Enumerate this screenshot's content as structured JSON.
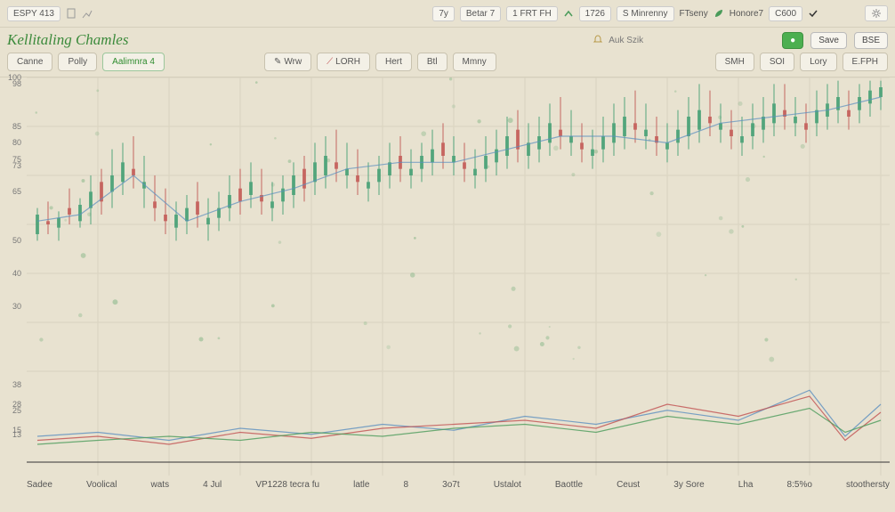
{
  "colors": {
    "bg": "#e8e2d0",
    "grid": "#d9d3c0",
    "axis_text": "#777777",
    "title": "#3b8a3b",
    "candle_up": "#3a9b6e",
    "candle_dn": "#c0504d",
    "line1": "#5a8fbf",
    "line2": "#c05050",
    "line3": "#4a9b5a",
    "baseline": "#333333"
  },
  "topbar": {
    "left_tag": "ESPY 413",
    "items": [
      "7y",
      "Betar 7",
      "1 FRT FH",
      "1726",
      "S Minrenny",
      "FTseny",
      "Honore7",
      "C600"
    ],
    "right_icon": "gear"
  },
  "titlebar": {
    "title": "Kellitaling Chamles",
    "side_label": "Auk Szik",
    "buttons": [
      "Save",
      "BSE"
    ],
    "green_btn": "●"
  },
  "toolbar": {
    "left": [
      {
        "label": "Canne",
        "active": false
      },
      {
        "label": "Polly",
        "active": false
      },
      {
        "label": "Aalimnra 4",
        "active": true
      }
    ],
    "mid": [
      {
        "label": "Wrw"
      },
      {
        "label": "LORH"
      },
      {
        "label": "Hert"
      },
      {
        "label": "Btl"
      },
      {
        "label": "Mmny"
      }
    ],
    "right": [
      {
        "label": "SMH"
      },
      {
        "label": "SOI"
      },
      {
        "label": "Lory"
      },
      {
        "label": "E.FPH"
      }
    ]
  },
  "main_chart": {
    "type": "candlestick",
    "ylim": [
      10,
      100
    ],
    "yticks": [
      100,
      98,
      85,
      80,
      75,
      73,
      65,
      50,
      40,
      30
    ],
    "xlim": [
      0,
      970
    ],
    "grid_x": [
      80,
      160,
      240,
      320,
      400,
      480,
      560,
      640,
      720,
      800,
      880,
      960
    ],
    "candles": [
      [
        12,
        52,
        60,
        50,
        58,
        "up"
      ],
      [
        24,
        55,
        62,
        52,
        56,
        "dn"
      ],
      [
        36,
        54,
        59,
        50,
        57,
        "up"
      ],
      [
        48,
        58,
        66,
        55,
        60,
        "dn"
      ],
      [
        60,
        56,
        63,
        54,
        61,
        "up"
      ],
      [
        72,
        60,
        70,
        55,
        65,
        "up"
      ],
      [
        84,
        62,
        72,
        58,
        68,
        "dn"
      ],
      [
        96,
        65,
        78,
        60,
        70,
        "up"
      ],
      [
        108,
        68,
        80,
        64,
        74,
        "up"
      ],
      [
        120,
        70,
        82,
        66,
        72,
        "dn"
      ],
      [
        132,
        66,
        76,
        60,
        68,
        "up"
      ],
      [
        144,
        62,
        70,
        56,
        60,
        "dn"
      ],
      [
        156,
        58,
        66,
        52,
        56,
        "dn"
      ],
      [
        168,
        54,
        62,
        50,
        58,
        "up"
      ],
      [
        180,
        56,
        64,
        52,
        60,
        "up"
      ],
      [
        192,
        58,
        68,
        54,
        62,
        "dn"
      ],
      [
        204,
        55,
        63,
        50,
        57,
        "up"
      ],
      [
        216,
        57,
        65,
        53,
        60,
        "up"
      ],
      [
        228,
        60,
        70,
        56,
        64,
        "up"
      ],
      [
        240,
        62,
        72,
        58,
        66,
        "dn"
      ],
      [
        252,
        64,
        74,
        60,
        68,
        "up"
      ],
      [
        264,
        62,
        72,
        58,
        64,
        "dn"
      ],
      [
        276,
        60,
        68,
        56,
        62,
        "up"
      ],
      [
        288,
        62,
        70,
        58,
        66,
        "up"
      ],
      [
        300,
        64,
        74,
        60,
        70,
        "up"
      ],
      [
        312,
        66,
        76,
        62,
        72,
        "dn"
      ],
      [
        324,
        68,
        80,
        64,
        74,
        "up"
      ],
      [
        336,
        70,
        82,
        66,
        76,
        "up"
      ],
      [
        348,
        72,
        84,
        68,
        74,
        "dn"
      ],
      [
        360,
        70,
        80,
        66,
        72,
        "up"
      ],
      [
        372,
        68,
        78,
        64,
        70,
        "dn"
      ],
      [
        384,
        66,
        74,
        62,
        68,
        "up"
      ],
      [
        396,
        68,
        76,
        64,
        72,
        "up"
      ],
      [
        408,
        70,
        80,
        66,
        74,
        "up"
      ],
      [
        420,
        72,
        82,
        68,
        76,
        "dn"
      ],
      [
        432,
        70,
        78,
        66,
        72,
        "up"
      ],
      [
        444,
        72,
        80,
        68,
        76,
        "up"
      ],
      [
        456,
        74,
        84,
        70,
        78,
        "up"
      ],
      [
        468,
        76,
        86,
        72,
        80,
        "dn"
      ],
      [
        480,
        74,
        82,
        70,
        76,
        "up"
      ],
      [
        492,
        72,
        80,
        68,
        74,
        "dn"
      ],
      [
        504,
        70,
        78,
        66,
        72,
        "up"
      ],
      [
        516,
        72,
        82,
        68,
        76,
        "up"
      ],
      [
        528,
        74,
        84,
        70,
        78,
        "up"
      ],
      [
        540,
        76,
        88,
        72,
        82,
        "up"
      ],
      [
        552,
        78,
        90,
        74,
        84,
        "dn"
      ],
      [
        564,
        76,
        86,
        72,
        80,
        "up"
      ],
      [
        576,
        78,
        88,
        74,
        82,
        "up"
      ],
      [
        588,
        80,
        92,
        76,
        86,
        "up"
      ],
      [
        600,
        82,
        94,
        78,
        84,
        "dn"
      ],
      [
        612,
        80,
        90,
        76,
        82,
        "up"
      ],
      [
        624,
        78,
        86,
        74,
        80,
        "dn"
      ],
      [
        636,
        76,
        84,
        72,
        78,
        "up"
      ],
      [
        648,
        78,
        88,
        74,
        82,
        "up"
      ],
      [
        660,
        80,
        92,
        76,
        86,
        "up"
      ],
      [
        672,
        82,
        94,
        78,
        88,
        "up"
      ],
      [
        684,
        84,
        96,
        80,
        86,
        "dn"
      ],
      [
        696,
        82,
        92,
        78,
        84,
        "up"
      ],
      [
        708,
        80,
        88,
        76,
        82,
        "dn"
      ],
      [
        720,
        78,
        86,
        74,
        80,
        "up"
      ],
      [
        732,
        80,
        90,
        76,
        84,
        "up"
      ],
      [
        744,
        82,
        94,
        78,
        88,
        "up"
      ],
      [
        756,
        84,
        98,
        80,
        90,
        "up"
      ],
      [
        768,
        86,
        96,
        82,
        88,
        "dn"
      ],
      [
        780,
        84,
        92,
        80,
        86,
        "up"
      ],
      [
        792,
        82,
        90,
        78,
        84,
        "dn"
      ],
      [
        804,
        80,
        88,
        76,
        82,
        "up"
      ],
      [
        816,
        82,
        92,
        78,
        86,
        "up"
      ],
      [
        828,
        84,
        94,
        80,
        88,
        "up"
      ],
      [
        840,
        86,
        98,
        82,
        92,
        "up"
      ],
      [
        852,
        88,
        98,
        84,
        90,
        "dn"
      ],
      [
        864,
        86,
        94,
        82,
        88,
        "up"
      ],
      [
        876,
        84,
        92,
        80,
        86,
        "dn"
      ],
      [
        888,
        86,
        96,
        82,
        90,
        "up"
      ],
      [
        900,
        88,
        98,
        84,
        92,
        "up"
      ],
      [
        912,
        90,
        99,
        86,
        94,
        "up"
      ],
      [
        924,
        88,
        96,
        84,
        90,
        "dn"
      ],
      [
        936,
        90,
        98,
        86,
        94,
        "up"
      ],
      [
        948,
        92,
        99,
        88,
        96,
        "up"
      ],
      [
        960,
        94,
        99,
        90,
        97,
        "up"
      ]
    ],
    "ma_line": [
      [
        12,
        56
      ],
      [
        60,
        58
      ],
      [
        120,
        70
      ],
      [
        180,
        56
      ],
      [
        240,
        62
      ],
      [
        300,
        66
      ],
      [
        360,
        72
      ],
      [
        420,
        74
      ],
      [
        480,
        74
      ],
      [
        540,
        78
      ],
      [
        600,
        82
      ],
      [
        660,
        82
      ],
      [
        720,
        80
      ],
      [
        780,
        86
      ],
      [
        840,
        88
      ],
      [
        900,
        90
      ],
      [
        960,
        94
      ]
    ]
  },
  "sub_chart": {
    "type": "line",
    "ylim": [
      0,
      40
    ],
    "yticks": [
      38,
      28,
      25,
      15,
      13
    ],
    "lines": {
      "blue": [
        [
          12,
          12
        ],
        [
          80,
          14
        ],
        [
          160,
          10
        ],
        [
          240,
          16
        ],
        [
          320,
          13
        ],
        [
          400,
          18
        ],
        [
          480,
          15
        ],
        [
          560,
          22
        ],
        [
          640,
          18
        ],
        [
          720,
          25
        ],
        [
          800,
          20
        ],
        [
          880,
          35
        ],
        [
          920,
          12
        ],
        [
          960,
          28
        ]
      ],
      "red": [
        [
          12,
          10
        ],
        [
          80,
          12
        ],
        [
          160,
          8
        ],
        [
          240,
          14
        ],
        [
          320,
          11
        ],
        [
          400,
          16
        ],
        [
          480,
          18
        ],
        [
          560,
          20
        ],
        [
          640,
          16
        ],
        [
          720,
          28
        ],
        [
          800,
          22
        ],
        [
          880,
          32
        ],
        [
          920,
          10
        ],
        [
          960,
          24
        ]
      ],
      "green": [
        [
          12,
          8
        ],
        [
          80,
          10
        ],
        [
          160,
          12
        ],
        [
          240,
          10
        ],
        [
          320,
          14
        ],
        [
          400,
          12
        ],
        [
          480,
          16
        ],
        [
          560,
          18
        ],
        [
          640,
          14
        ],
        [
          720,
          22
        ],
        [
          800,
          18
        ],
        [
          880,
          26
        ],
        [
          920,
          14
        ],
        [
          960,
          20
        ]
      ]
    }
  },
  "xaxis_labels": [
    "Sadee",
    "Voolical",
    "wats",
    "4 Jul",
    "VP1228 tecra fu",
    "latle",
    "8",
    "3o7t",
    "Ustalot",
    "Baottle",
    "Ceust",
    "3y Sore",
    "Lha",
    "8:5%o",
    "stoothersty"
  ]
}
